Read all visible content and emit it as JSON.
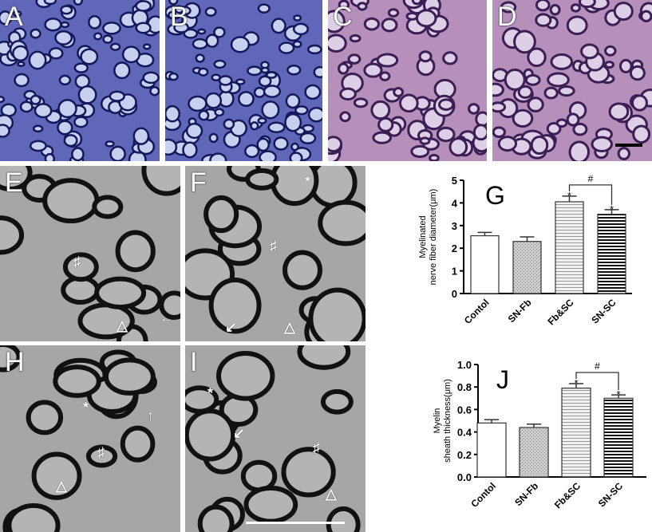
{
  "panels": [
    {
      "label": "A",
      "type": "light-blue"
    },
    {
      "label": "B",
      "type": "light-blue"
    },
    {
      "label": "C",
      "type": "light-purple"
    },
    {
      "label": "D",
      "type": "light-purple"
    },
    {
      "label": "E",
      "type": "em"
    },
    {
      "label": "F",
      "type": "em"
    },
    {
      "label": "H",
      "type": "em"
    },
    {
      "label": "I",
      "type": "em"
    }
  ],
  "annotations": {
    "hash": "♯",
    "star": "*"
  },
  "colors": {
    "stain_blue": "#5b5fb4",
    "stain_purple": "#b48cb8",
    "em_gray": "#a9a9a9"
  },
  "chart_data": [
    {
      "panel_label": "G",
      "type": "bar",
      "ylabel": [
        "Myelinated",
        "nerve fiber diameter(μm)"
      ],
      "categories": [
        "Contol",
        "SN-Fb",
        "Fb&SC",
        "SN-SC"
      ],
      "values": [
        2.55,
        2.3,
        4.05,
        3.5
      ],
      "errors": [
        0.15,
        0.2,
        0.25,
        0.2
      ],
      "significance": [
        "",
        "",
        "*",
        "*"
      ],
      "bracket": {
        "from": 2,
        "to": 3,
        "label": "#"
      },
      "ylim": [
        0,
        5
      ],
      "yticks": [
        "0",
        "1",
        "2",
        "3",
        "4",
        "5"
      ],
      "patterns": [
        "white",
        "dotted-gray",
        "light-hlines",
        "dark-hlines"
      ],
      "grid": false
    },
    {
      "panel_label": "J",
      "type": "bar",
      "ylabel": [
        "Myelin",
        "sheath thickness(μm)"
      ],
      "categories": [
        "Contol",
        "SN-Fb",
        "Fb&SC",
        "SN-SC"
      ],
      "values": [
        0.48,
        0.44,
        0.79,
        0.7
      ],
      "errors": [
        0.03,
        0.03,
        0.04,
        0.03
      ],
      "significance": [
        "",
        "",
        "*",
        "*"
      ],
      "bracket": {
        "from": 2,
        "to": 3,
        "label": "#"
      },
      "ylim": [
        0,
        1
      ],
      "yticks": [
        "0.0",
        "0.2",
        "0.4",
        "0.6",
        "0.8",
        "1.0"
      ],
      "patterns": [
        "white",
        "dotted-gray",
        "light-hlines",
        "dark-hlines"
      ],
      "grid": false
    }
  ]
}
